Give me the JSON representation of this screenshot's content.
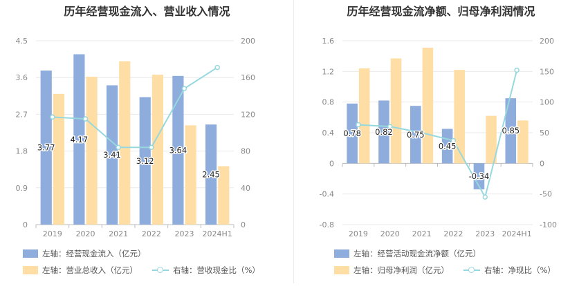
{
  "colors": {
    "bar1": "#8eacdc",
    "bar2": "#ffdea6",
    "line": "#96d8dd",
    "grid": "#e9e9e9",
    "axis": "#cccccc"
  },
  "chart_data": [
    {
      "type": "bar",
      "title": "历年经营现金流入、营业收入情况",
      "categories": [
        "2019",
        "2020",
        "2021",
        "2022",
        "2023",
        "2024H1"
      ],
      "y_left": {
        "ticks": [
          "0",
          "0.9",
          "1.8",
          "2.7",
          "3.6",
          "4.5"
        ],
        "min": 0,
        "max": 4.5
      },
      "y_right": {
        "ticks": [
          "0",
          "40",
          "80",
          "120",
          "160",
          "200"
        ],
        "min": 0,
        "max": 200
      },
      "grid": true,
      "legend_placement": "bottom",
      "series": [
        {
          "name": "左轴：经营现金流入（亿元）",
          "type": "bar",
          "axis": "left",
          "values": [
            3.77,
            4.17,
            3.41,
            3.12,
            3.64,
            2.45
          ],
          "labels": [
            "3.77",
            "4.17",
            "3.41",
            "3.12",
            "3.64",
            "2.45"
          ]
        },
        {
          "name": "左轴：营业总收入（亿元）",
          "type": "bar",
          "axis": "left",
          "values": [
            3.2,
            3.62,
            4.0,
            3.67,
            2.43,
            1.43
          ]
        },
        {
          "name": "右轴：营收现金比（%）",
          "type": "line",
          "axis": "right",
          "values": [
            117,
            115,
            84,
            84,
            148,
            171
          ]
        }
      ]
    },
    {
      "type": "bar",
      "title": "历年经营现金流净额、归母净利润情况",
      "categories": [
        "2019",
        "2020",
        "2021",
        "2022",
        "2023",
        "2024H1"
      ],
      "y_left": {
        "ticks": [
          "-0.8",
          "-0.4",
          "0",
          "0.4",
          "0.8",
          "1.2",
          "1.6"
        ],
        "min": -0.8,
        "max": 1.6
      },
      "y_right": {
        "ticks": [
          "-100",
          "-50",
          "0",
          "50",
          "100",
          "150",
          "200"
        ],
        "min": -100,
        "max": 200
      },
      "grid": true,
      "legend_placement": "bottom",
      "series": [
        {
          "name": "左轴：经营活动现金流净额（亿元）",
          "type": "bar",
          "axis": "left",
          "values": [
            0.78,
            0.82,
            0.75,
            0.45,
            -0.34,
            0.85
          ],
          "labels": [
            "0.78",
            "0.82",
            "0.75",
            "0.45",
            "-0.34",
            "0.85"
          ]
        },
        {
          "name": "左轴：归母净利润（亿元）",
          "type": "bar",
          "axis": "left",
          "values": [
            1.24,
            1.37,
            1.51,
            1.22,
            0.62,
            0.56
          ]
        },
        {
          "name": "右轴：净现比（%）",
          "type": "line",
          "axis": "right",
          "values": [
            63,
            60,
            50,
            37,
            -55,
            152
          ]
        }
      ]
    }
  ]
}
